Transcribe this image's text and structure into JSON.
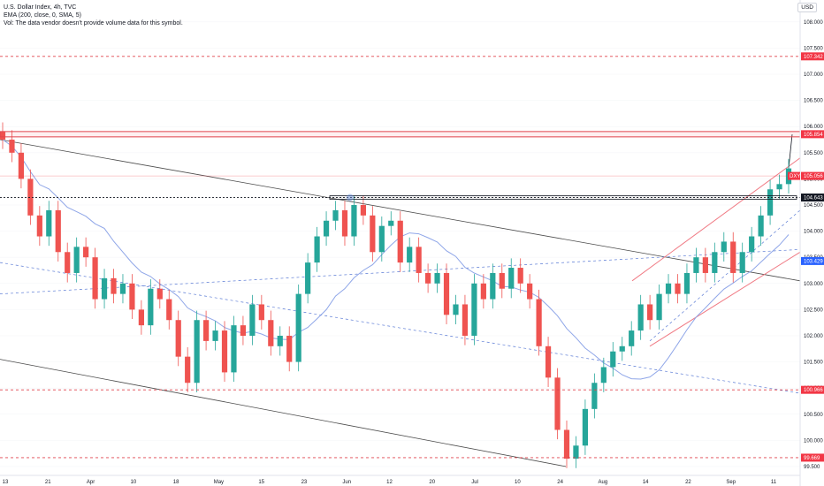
{
  "legend": {
    "symbol": "U.S. Dollar Index, 4h, TVC",
    "ema": "EMA (200, close, 0, SMA, 5)",
    "vol": "Vol: The data vendor doesn't provide volume data for this symbol."
  },
  "currency": "USD",
  "colors": {
    "up": "#26a69a",
    "down": "#ef5350",
    "ema": "#8fa6e8",
    "trend": "#4a4a4a",
    "dashed_blue": "#5b7bd5",
    "red_level": "#e0434c",
    "channel_red": "#f07a84",
    "price_tag": "#f23645",
    "ema_tag": "#2962ff",
    "current_tag": "#131722"
  },
  "chart_data": {
    "type": "candlestick",
    "y_ticks": [
      "108.000",
      "107.500",
      "107.000",
      "106.500",
      "106.000",
      "105.500",
      "105.000",
      "104.500",
      "104.000",
      "103.500",
      "103.000",
      "102.500",
      "102.000",
      "101.500",
      "101.000",
      "100.500",
      "100.000",
      "99.500"
    ],
    "ylim": [
      99.33,
      108.42
    ],
    "x_ticks": [
      "13",
      "21",
      "Apr",
      "10",
      "18",
      "May",
      "15",
      "23",
      "Jun",
      "12",
      "20",
      "Jul",
      "10",
      "24",
      "Aug",
      "14",
      "22",
      "Sep",
      "11"
    ],
    "closes": [
      105.75,
      105.5,
      105.0,
      104.3,
      103.9,
      104.4,
      103.6,
      103.2,
      103.7,
      103.5,
      102.7,
      103.1,
      102.8,
      103.0,
      102.5,
      102.2,
      102.9,
      102.7,
      102.3,
      101.6,
      101.1,
      102.3,
      101.9,
      102.1,
      101.3,
      102.2,
      102.0,
      102.6,
      102.3,
      101.8,
      102.0,
      101.5,
      102.8,
      103.4,
      103.9,
      104.2,
      104.4,
      103.9,
      104.5,
      104.3,
      103.6,
      104.1,
      104.2,
      103.4,
      103.7,
      103.2,
      103.0,
      103.2,
      102.4,
      102.6,
      102.0,
      103.0,
      102.7,
      103.2,
      102.9,
      103.3,
      103.0,
      102.7,
      101.8,
      101.2,
      100.2,
      99.65,
      99.9,
      100.6,
      101.1,
      101.4,
      101.7,
      101.8,
      102.1,
      102.6,
      102.3,
      102.8,
      103.0,
      102.8,
      103.2,
      103.5,
      103.2,
      103.6,
      103.8,
      103.2,
      103.6,
      103.9,
      104.3,
      104.8,
      104.9,
      105.2
    ],
    "levels": [
      {
        "price": 107.342,
        "label": "107.342",
        "kind": "red-dashed"
      },
      {
        "price": 105.854,
        "label": "105.854",
        "kind": "red-zone"
      },
      {
        "price": 105.056,
        "label": "105.056",
        "kind": "current-price"
      },
      {
        "price": 104.643,
        "label": "104.643",
        "kind": "black-zone"
      },
      {
        "price": 103.429,
        "label": "103.429",
        "kind": "ema"
      },
      {
        "price": 100.966,
        "label": "100.966",
        "kind": "red-dashed"
      },
      {
        "price": 99.669,
        "label": "99.669",
        "kind": "red-dashed"
      }
    ],
    "current_symbol": "DXY"
  }
}
